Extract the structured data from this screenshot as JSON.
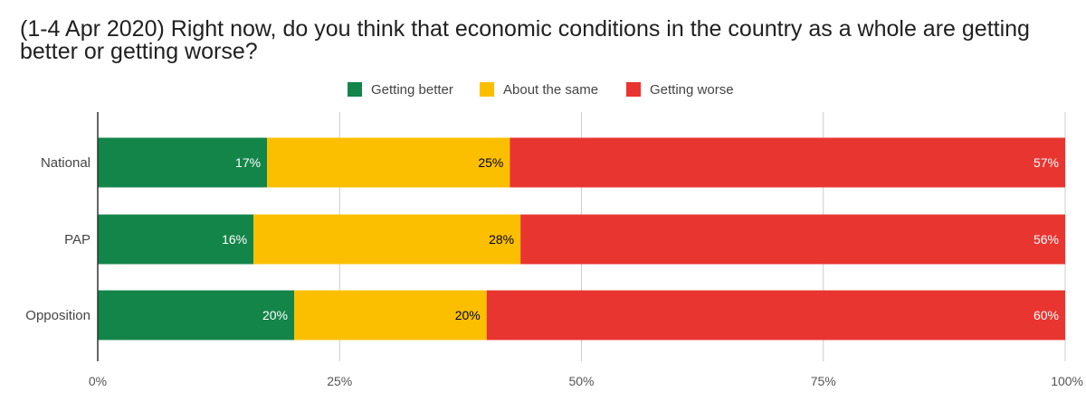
{
  "chart_data": {
    "type": "bar",
    "orientation": "horizontal",
    "stacked": true,
    "title": "(1-4 Apr 2020) Right now, do you think that economic conditions in the country as a whole are getting better or getting worse?",
    "categories": [
      "National",
      "PAP",
      "Opposition"
    ],
    "series": [
      {
        "name": "Getting better",
        "color": "#138549",
        "label_color": "#ffffff",
        "values": [
          17.5,
          16.1,
          20.3
        ],
        "labels": [
          "17%",
          "16%",
          "20%"
        ]
      },
      {
        "name": "About the same",
        "color": "#fbbf00",
        "label_color": "#000000",
        "values": [
          25.1,
          27.6,
          19.9
        ],
        "labels": [
          "25%",
          "28%",
          "20%"
        ]
      },
      {
        "name": "Getting worse",
        "color": "#e93530",
        "label_color": "#ffffff",
        "values": [
          57.4,
          56.3,
          59.8
        ],
        "labels": [
          "57%",
          "56%",
          "60%"
        ]
      }
    ],
    "xlim": [
      0,
      100
    ],
    "x_ticks": [
      0,
      25,
      50,
      75,
      100
    ],
    "x_tick_labels": [
      "0%",
      "25%",
      "50%",
      "75%",
      "100%"
    ],
    "grid": true,
    "legend": "top"
  }
}
